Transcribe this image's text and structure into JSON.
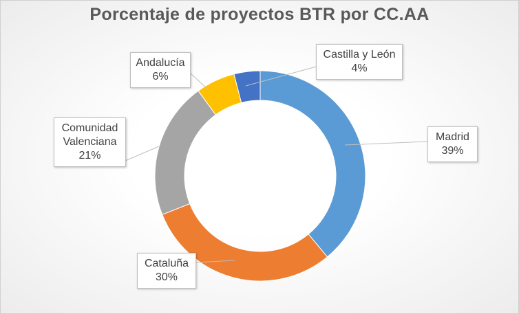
{
  "chart_data": {
    "type": "pie",
    "variant": "donut",
    "title": "Porcentaje de proyectos BTR por CC.AA",
    "categories": [
      "Madrid",
      "Cataluña",
      "Comunidad Valenciana",
      "Andalucía",
      "Castilla y León"
    ],
    "values": [
      39,
      30,
      21,
      6,
      4
    ],
    "data_labels": [
      "39%",
      "30%",
      "21%",
      "6%",
      "4%"
    ],
    "colors": [
      "#5B9BD5",
      "#ED7D31",
      "#A5A5A5",
      "#FFC000",
      "#4472C4"
    ],
    "start_angle": "top",
    "direction": "clockwise",
    "legend": "none"
  }
}
